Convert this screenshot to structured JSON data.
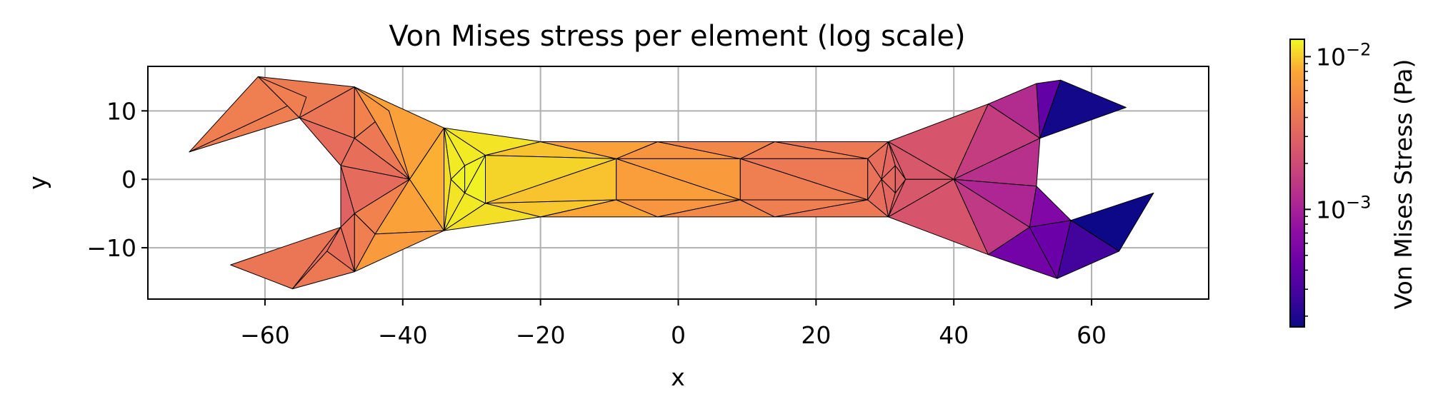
{
  "chart_data": {
    "type": "tripcolor",
    "title": "Von Mises stress per element (log scale)",
    "xlabel": "x",
    "ylabel": "y",
    "xlim": [
      -77,
      77
    ],
    "ylim": [
      -17.5,
      16.5
    ],
    "xticks": [
      -60,
      -40,
      -20,
      0,
      20,
      40,
      60
    ],
    "xtick_labels": [
      "−60",
      "−40",
      "−20",
      "0",
      "20",
      "40",
      "60"
    ],
    "yticks": [
      -10,
      0,
      10
    ],
    "ytick_labels": [
      "−10",
      "0",
      "10"
    ],
    "grid": true,
    "colormap": "plasma",
    "colorbar": {
      "label": "Von Mises Stress (Pa)",
      "scale": "log",
      "range": [
        0.00017,
        0.013
      ],
      "major_ticks": [
        0.001,
        0.01
      ],
      "major_tick_base": "10",
      "major_tick_exponents": [
        "−3",
        "−2"
      ]
    },
    "elements": [
      {
        "p": [
          [
            -71,
            4
          ],
          [
            -61,
            15
          ],
          [
            -54,
            12
          ]
        ],
        "v": 0.0045
      },
      {
        "p": [
          [
            -71,
            4
          ],
          [
            -54,
            12
          ],
          [
            -55,
            9
          ]
        ],
        "v": 0.0045
      },
      {
        "p": [
          [
            -61,
            15
          ],
          [
            -47,
            13.5
          ],
          [
            -55,
            9
          ]
        ],
        "v": 0.0043
      },
      {
        "p": [
          [
            -61,
            15
          ],
          [
            -55,
            9
          ],
          [
            -54,
            12
          ]
        ],
        "v": 0.0045
      },
      {
        "p": [
          [
            -55,
            9
          ],
          [
            -47,
            13.5
          ],
          [
            -47,
            6
          ]
        ],
        "v": 0.004
      },
      {
        "p": [
          [
            -55,
            9
          ],
          [
            -47,
            6
          ],
          [
            -49,
            2
          ]
        ],
        "v": 0.0035
      },
      {
        "p": [
          [
            -47,
            13.5
          ],
          [
            -42,
            10
          ],
          [
            -47,
            6
          ]
        ],
        "v": 0.0048
      },
      {
        "p": [
          [
            -47,
            6
          ],
          [
            -42,
            10
          ],
          [
            -39,
            0
          ]
        ],
        "v": 0.0042
      },
      {
        "p": [
          [
            -47,
            6
          ],
          [
            -39,
            0
          ],
          [
            -49,
            2
          ]
        ],
        "v": 0.0036
      },
      {
        "p": [
          [
            -47,
            13.5
          ],
          [
            -34,
            7.5
          ],
          [
            -39,
            0
          ]
        ],
        "v": 0.0075
      },
      {
        "p": [
          [
            -47,
            13.5
          ],
          [
            -39,
            0
          ],
          [
            -42,
            10
          ]
        ],
        "v": 0.0065
      },
      {
        "p": [
          [
            -49,
            2
          ],
          [
            -39,
            0
          ],
          [
            -47,
            -5
          ]
        ],
        "v": 0.0034
      },
      {
        "p": [
          [
            -49,
            2
          ],
          [
            -47,
            -5
          ],
          [
            -49,
            -7
          ]
        ],
        "v": 0.003
      },
      {
        "p": [
          [
            -49,
            -7
          ],
          [
            -47,
            -5
          ],
          [
            -47,
            -13.5
          ]
        ],
        "v": 0.0036
      },
      {
        "p": [
          [
            -47,
            -5
          ],
          [
            -39,
            0
          ],
          [
            -44,
            -8
          ]
        ],
        "v": 0.0048
      },
      {
        "p": [
          [
            -47,
            -5
          ],
          [
            -44,
            -8
          ],
          [
            -47,
            -13.5
          ]
        ],
        "v": 0.0045
      },
      {
        "p": [
          [
            -44,
            -8
          ],
          [
            -39,
            0
          ],
          [
            -34,
            -7.5
          ]
        ],
        "v": 0.0075
      },
      {
        "p": [
          [
            -44,
            -8
          ],
          [
            -34,
            -7.5
          ],
          [
            -47,
            -13.5
          ]
        ],
        "v": 0.0068
      },
      {
        "p": [
          [
            -65,
            -12.5
          ],
          [
            -49,
            -7
          ],
          [
            -56,
            -16
          ]
        ],
        "v": 0.004
      },
      {
        "p": [
          [
            -56,
            -16
          ],
          [
            -49,
            -7
          ],
          [
            -51,
            -10.5
          ]
        ],
        "v": 0.0036
      },
      {
        "p": [
          [
            -51,
            -10.5
          ],
          [
            -49,
            -7
          ],
          [
            -47,
            -13.5
          ]
        ],
        "v": 0.0036
      },
      {
        "p": [
          [
            -56,
            -16
          ],
          [
            -51,
            -10.5
          ],
          [
            -47,
            -13.5
          ]
        ],
        "v": 0.0042
      },
      {
        "p": [
          [
            -34,
            7.5
          ],
          [
            -39,
            0
          ],
          [
            -34,
            -7.5
          ]
        ],
        "v": 0.0085
      },
      {
        "p": [
          [
            -34,
            7.5
          ],
          [
            -34,
            -7.5
          ],
          [
            -33,
            0
          ]
        ],
        "v": 0.011
      },
      {
        "p": [
          [
            -34,
            7.5
          ],
          [
            -33,
            0
          ],
          [
            -31,
            2
          ]
        ],
        "v": 0.012
      },
      {
        "p": [
          [
            -34,
            7.5
          ],
          [
            -31,
            2
          ],
          [
            -28,
            3.5
          ]
        ],
        "v": 0.012
      },
      {
        "p": [
          [
            -34,
            7.5
          ],
          [
            -28,
            3.5
          ],
          [
            -20,
            5.5
          ]
        ],
        "v": 0.0115
      },
      {
        "p": [
          [
            -33,
            0
          ],
          [
            -34,
            -7.5
          ],
          [
            -31,
            -2
          ]
        ],
        "v": 0.0115
      },
      {
        "p": [
          [
            -31,
            2
          ],
          [
            -33,
            0
          ],
          [
            -31,
            -2
          ]
        ],
        "v": 0.0125
      },
      {
        "p": [
          [
            -31,
            2
          ],
          [
            -31,
            -2
          ],
          [
            -28,
            3.5
          ]
        ],
        "v": 0.0125
      },
      {
        "p": [
          [
            -28,
            3.5
          ],
          [
            -31,
            -2
          ],
          [
            -28,
            -3.5
          ]
        ],
        "v": 0.0125
      },
      {
        "p": [
          [
            -31,
            -2
          ],
          [
            -34,
            -7.5
          ],
          [
            -28,
            -3.5
          ]
        ],
        "v": 0.012
      },
      {
        "p": [
          [
            -28,
            -3.5
          ],
          [
            -34,
            -7.5
          ],
          [
            -20,
            -5.5
          ]
        ],
        "v": 0.0112
      },
      {
        "p": [
          [
            -28,
            3.5
          ],
          [
            -20,
            5.5
          ],
          [
            -9,
            3
          ]
        ],
        "v": 0.0095
      },
      {
        "p": [
          [
            -28,
            3.5
          ],
          [
            -9,
            3
          ],
          [
            -28,
            -3.5
          ]
        ],
        "v": 0.0105
      },
      {
        "p": [
          [
            -28,
            -3.5
          ],
          [
            -9,
            3
          ],
          [
            -9,
            -3
          ]
        ],
        "v": 0.0095
      },
      {
        "p": [
          [
            -28,
            -3.5
          ],
          [
            -9,
            -3
          ],
          [
            -20,
            -5.5
          ]
        ],
        "v": 0.0098
      },
      {
        "p": [
          [
            -20,
            5.5
          ],
          [
            -3,
            5.5
          ],
          [
            -9,
            3
          ]
        ],
        "v": 0.0075
      },
      {
        "p": [
          [
            -9,
            3
          ],
          [
            -3,
            5.5
          ],
          [
            9,
            3
          ]
        ],
        "v": 0.0062
      },
      {
        "p": [
          [
            -3,
            5.5
          ],
          [
            14,
            5.5
          ],
          [
            9,
            3
          ]
        ],
        "v": 0.0052
      },
      {
        "p": [
          [
            -9,
            3
          ],
          [
            9,
            3
          ],
          [
            9,
            -3
          ]
        ],
        "v": 0.0068
      },
      {
        "p": [
          [
            -9,
            3
          ],
          [
            9,
            -3
          ],
          [
            -9,
            -3
          ]
        ],
        "v": 0.0072
      },
      {
        "p": [
          [
            -20,
            -5.5
          ],
          [
            -9,
            -3
          ],
          [
            -3,
            -5.5
          ]
        ],
        "v": 0.0078
      },
      {
        "p": [
          [
            -9,
            -3
          ],
          [
            9,
            -3
          ],
          [
            -3,
            -5.5
          ]
        ],
        "v": 0.0063
      },
      {
        "p": [
          [
            -3,
            -5.5
          ],
          [
            9,
            -3
          ],
          [
            14,
            -5.5
          ]
        ],
        "v": 0.0053
      },
      {
        "p": [
          [
            14,
            5.5
          ],
          [
            30.5,
            5.5
          ],
          [
            27.5,
            3
          ]
        ],
        "v": 0.0042
      },
      {
        "p": [
          [
            9,
            3
          ],
          [
            14,
            5.5
          ],
          [
            27.5,
            3
          ]
        ],
        "v": 0.0045
      },
      {
        "p": [
          [
            9,
            3
          ],
          [
            27.5,
            3
          ],
          [
            27.5,
            -3
          ]
        ],
        "v": 0.0042
      },
      {
        "p": [
          [
            9,
            3
          ],
          [
            27.5,
            -3
          ],
          [
            9,
            -3
          ]
        ],
        "v": 0.0045
      },
      {
        "p": [
          [
            9,
            -3
          ],
          [
            27.5,
            -3
          ],
          [
            14,
            -5.5
          ]
        ],
        "v": 0.0045
      },
      {
        "p": [
          [
            14,
            -5.5
          ],
          [
            27.5,
            -3
          ],
          [
            30.5,
            -5.5
          ]
        ],
        "v": 0.0042
      },
      {
        "p": [
          [
            27.5,
            3
          ],
          [
            30.5,
            5.5
          ],
          [
            29.5,
            0
          ]
        ],
        "v": 0.0035
      },
      {
        "p": [
          [
            27.5,
            3
          ],
          [
            29.5,
            0
          ],
          [
            27.5,
            -3
          ]
        ],
        "v": 0.0038
      },
      {
        "p": [
          [
            27.5,
            -3
          ],
          [
            29.5,
            0
          ],
          [
            30.5,
            -5.5
          ]
        ],
        "v": 0.0035
      },
      {
        "p": [
          [
            30.5,
            5.5
          ],
          [
            31.5,
            2
          ],
          [
            29.5,
            0
          ]
        ],
        "v": 0.0032
      },
      {
        "p": [
          [
            29.5,
            0
          ],
          [
            31.5,
            2
          ],
          [
            31.5,
            -2
          ]
        ],
        "v": 0.0033
      },
      {
        "p": [
          [
            29.5,
            0
          ],
          [
            31.5,
            -2
          ],
          [
            30.5,
            -5.5
          ]
        ],
        "v": 0.0032
      },
      {
        "p": [
          [
            30.5,
            5.5
          ],
          [
            33,
            0
          ],
          [
            31.5,
            2
          ]
        ],
        "v": 0.0029
      },
      {
        "p": [
          [
            31.5,
            -2
          ],
          [
            33,
            0
          ],
          [
            30.5,
            -5.5
          ]
        ],
        "v": 0.0029
      },
      {
        "p": [
          [
            31.5,
            2
          ],
          [
            33,
            0
          ],
          [
            31.5,
            -2
          ]
        ],
        "v": 0.003
      },
      {
        "p": [
          [
            30.5,
            5.5
          ],
          [
            40,
            0
          ],
          [
            33,
            0
          ]
        ],
        "v": 0.0025
      },
      {
        "p": [
          [
            33,
            0
          ],
          [
            40,
            0
          ],
          [
            30.5,
            -5.5
          ]
        ],
        "v": 0.0025
      },
      {
        "p": [
          [
            30.5,
            5.5
          ],
          [
            45,
            11
          ],
          [
            40,
            0
          ]
        ],
        "v": 0.0024
      },
      {
        "p": [
          [
            30.5,
            -5.5
          ],
          [
            40,
            0
          ],
          [
            45,
            -11
          ]
        ],
        "v": 0.0024
      },
      {
        "p": [
          [
            45,
            11
          ],
          [
            52.5,
            6
          ],
          [
            40,
            0
          ]
        ],
        "v": 0.0016
      },
      {
        "p": [
          [
            45,
            11
          ],
          [
            52,
            14
          ],
          [
            52.5,
            6
          ]
        ],
        "v": 0.0012
      },
      {
        "p": [
          [
            52,
            14
          ],
          [
            55.5,
            14.5
          ],
          [
            52.5,
            6
          ]
        ],
        "v": 0.0004
      },
      {
        "p": [
          [
            55.5,
            14.5
          ],
          [
            65,
            10.5
          ],
          [
            52.5,
            6
          ]
        ],
        "v": 0.00018
      },
      {
        "p": [
          [
            40,
            0
          ],
          [
            52.5,
            6
          ],
          [
            52,
            -1
          ]
        ],
        "v": 0.0013
      },
      {
        "p": [
          [
            40,
            0
          ],
          [
            52,
            -1
          ],
          [
            51,
            -7
          ]
        ],
        "v": 0.0011
      },
      {
        "p": [
          [
            40,
            0
          ],
          [
            51,
            -7
          ],
          [
            45,
            -11
          ]
        ],
        "v": 0.0015
      },
      {
        "p": [
          [
            52,
            -1
          ],
          [
            57,
            -6
          ],
          [
            51,
            -7
          ]
        ],
        "v": 0.0006
      },
      {
        "p": [
          [
            45,
            -11
          ],
          [
            51,
            -7
          ],
          [
            55,
            -14.5
          ]
        ],
        "v": 0.0005
      },
      {
        "p": [
          [
            51,
            -7
          ],
          [
            57,
            -6
          ],
          [
            55,
            -14.5
          ]
        ],
        "v": 0.00045
      },
      {
        "p": [
          [
            57,
            -6
          ],
          [
            64,
            -10.5
          ],
          [
            55,
            -14.5
          ]
        ],
        "v": 0.00028
      },
      {
        "p": [
          [
            57,
            -6
          ],
          [
            69,
            -2
          ],
          [
            64,
            -10.5
          ]
        ],
        "v": 0.00017
      }
    ]
  }
}
